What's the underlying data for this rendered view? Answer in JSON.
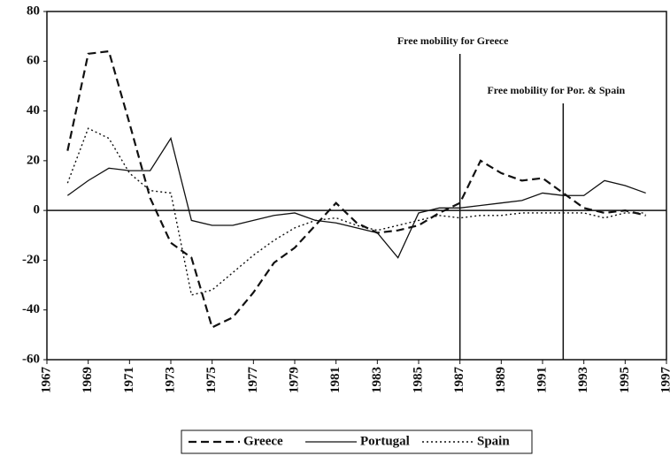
{
  "chart_data": {
    "type": "line",
    "x": [
      1968,
      1969,
      1970,
      1971,
      1972,
      1973,
      1974,
      1975,
      1976,
      1977,
      1978,
      1979,
      1980,
      1981,
      1982,
      1983,
      1984,
      1985,
      1986,
      1987,
      1988,
      1989,
      1990,
      1991,
      1992,
      1993,
      1994,
      1995,
      1996
    ],
    "series": [
      {
        "name": "Greece",
        "color": "#111111",
        "dash": "dashed",
        "values": [
          24,
          63,
          64,
          35,
          5,
          -13,
          -19,
          -47,
          -43,
          -33,
          -21,
          -15,
          -6,
          3,
          -5,
          -9,
          -8,
          -6,
          -1,
          3,
          20,
          15,
          12,
          13,
          7,
          1,
          -1,
          0,
          -2
        ]
      },
      {
        "name": "Portugal",
        "color": "#111111",
        "dash": "solid",
        "values": [
          6,
          12,
          17,
          16,
          16,
          29,
          -4,
          -6,
          -6,
          -4,
          -2,
          -1,
          -4,
          -5,
          -7,
          -9,
          -19,
          -1,
          1,
          1,
          2,
          3,
          4,
          7,
          6,
          6,
          12,
          10,
          7
        ]
      },
      {
        "name": "Spain",
        "color": "#111111",
        "dash": "dotted",
        "values": [
          11,
          33,
          29,
          15,
          8,
          7,
          -34,
          -32,
          -25,
          -18,
          -12,
          -7,
          -4,
          -3,
          -6,
          -8,
          -6,
          -4,
          -2,
          -3,
          -2,
          -2,
          -1,
          -1,
          -1,
          -1,
          -3,
          -1,
          -1
        ]
      }
    ],
    "xlim": [
      1967,
      1997
    ],
    "xticks": [
      1967,
      1969,
      1971,
      1973,
      1975,
      1977,
      1979,
      1981,
      1983,
      1985,
      1987,
      1989,
      1991,
      1993,
      1995,
      1997
    ],
    "ylim": [
      -60,
      80
    ],
    "yticks": [
      -60,
      -40,
      -20,
      0,
      20,
      40,
      60,
      80
    ],
    "annotations": [
      {
        "text": "Free mobility for Greece",
        "x": 1987
      },
      {
        "text": "Free mobility for Por. & Spain",
        "x": 1992
      }
    ],
    "legend": "bottom"
  }
}
